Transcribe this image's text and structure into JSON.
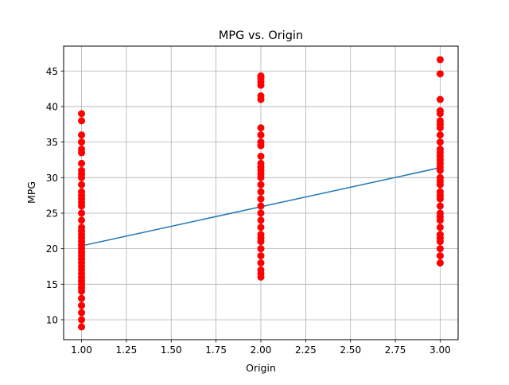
{
  "chart_data": {
    "type": "scatter",
    "title": "MPG vs. Origin",
    "xlabel": "Origin",
    "ylabel": "MPG",
    "xlim": [
      0.9,
      3.1
    ],
    "ylim": [
      7.2,
      48.5
    ],
    "x_ticks": [
      1.0,
      1.25,
      1.5,
      1.75,
      2.0,
      2.25,
      2.5,
      2.75,
      3.0
    ],
    "x_tick_labels": [
      "1.00",
      "1.25",
      "1.50",
      "1.75",
      "2.00",
      "2.25",
      "2.50",
      "2.75",
      "3.00"
    ],
    "y_ticks": [
      10,
      15,
      20,
      25,
      30,
      35,
      40,
      45
    ],
    "y_tick_labels": [
      "10",
      "15",
      "20",
      "25",
      "30",
      "35",
      "40",
      "45"
    ],
    "grid": true,
    "colors": {
      "points": "#ff0000",
      "line": "#1f77b4",
      "grid": "#b0b0b0"
    },
    "series": [
      {
        "kind": "scatter",
        "points": [
          [
            1,
            9
          ],
          [
            1,
            10
          ],
          [
            1,
            11
          ],
          [
            1,
            12
          ],
          [
            1,
            13
          ],
          [
            1,
            14
          ],
          [
            1,
            14.5
          ],
          [
            1,
            15
          ],
          [
            1,
            15.5
          ],
          [
            1,
            16
          ],
          [
            1,
            16.5
          ],
          [
            1,
            17
          ],
          [
            1,
            17.5
          ],
          [
            1,
            18
          ],
          [
            1,
            18.5
          ],
          [
            1,
            19
          ],
          [
            1,
            19.5
          ],
          [
            1,
            20
          ],
          [
            1,
            20.5
          ],
          [
            1,
            21
          ],
          [
            1,
            21.5
          ],
          [
            1,
            22
          ],
          [
            1,
            22.5
          ],
          [
            1,
            23
          ],
          [
            1,
            24
          ],
          [
            1,
            25
          ],
          [
            1,
            26
          ],
          [
            1,
            26.5
          ],
          [
            1,
            27
          ],
          [
            1,
            27.5
          ],
          [
            1,
            28
          ],
          [
            1,
            29
          ],
          [
            1,
            30
          ],
          [
            1,
            30.5
          ],
          [
            1,
            31
          ],
          [
            1,
            32
          ],
          [
            1,
            33.5
          ],
          [
            1,
            34
          ],
          [
            1,
            35
          ],
          [
            1,
            36
          ],
          [
            1,
            38
          ],
          [
            1,
            39
          ],
          [
            2,
            16
          ],
          [
            2,
            16.5
          ],
          [
            2,
            17
          ],
          [
            2,
            18
          ],
          [
            2,
            19
          ],
          [
            2,
            20
          ],
          [
            2,
            21
          ],
          [
            2,
            21.5
          ],
          [
            2,
            22
          ],
          [
            2,
            23
          ],
          [
            2,
            24
          ],
          [
            2,
            25
          ],
          [
            2,
            26
          ],
          [
            2,
            27
          ],
          [
            2,
            28
          ],
          [
            2,
            29
          ],
          [
            2,
            30
          ],
          [
            2,
            30.5
          ],
          [
            2,
            31
          ],
          [
            2,
            31.5
          ],
          [
            2,
            32
          ],
          [
            2,
            33
          ],
          [
            2,
            34.5
          ],
          [
            2,
            35
          ],
          [
            2,
            36
          ],
          [
            2,
            37
          ],
          [
            2,
            41
          ],
          [
            2,
            41.5
          ],
          [
            2,
            43
          ],
          [
            2,
            43.5
          ],
          [
            2,
            44
          ],
          [
            2,
            44.3
          ],
          [
            3,
            18
          ],
          [
            3,
            19
          ],
          [
            3,
            20
          ],
          [
            3,
            21
          ],
          [
            3,
            21.5
          ],
          [
            3,
            22
          ],
          [
            3,
            23
          ],
          [
            3,
            24
          ],
          [
            3,
            24.5
          ],
          [
            3,
            25
          ],
          [
            3,
            26
          ],
          [
            3,
            27
          ],
          [
            3,
            27.5
          ],
          [
            3,
            28
          ],
          [
            3,
            29
          ],
          [
            3,
            29.5
          ],
          [
            3,
            30
          ],
          [
            3,
            31
          ],
          [
            3,
            31.5
          ],
          [
            3,
            32
          ],
          [
            3,
            32.5
          ],
          [
            3,
            33
          ],
          [
            3,
            33.5
          ],
          [
            3,
            34
          ],
          [
            3,
            35
          ],
          [
            3,
            36
          ],
          [
            3,
            37
          ],
          [
            3,
            37.5
          ],
          [
            3,
            38
          ],
          [
            3,
            39
          ],
          [
            3,
            39.4
          ],
          [
            3,
            41
          ],
          [
            3,
            44.6
          ],
          [
            3,
            46.6
          ]
        ]
      },
      {
        "kind": "line",
        "points": [
          [
            1,
            20.4
          ],
          [
            3,
            31.4
          ]
        ]
      }
    ]
  }
}
